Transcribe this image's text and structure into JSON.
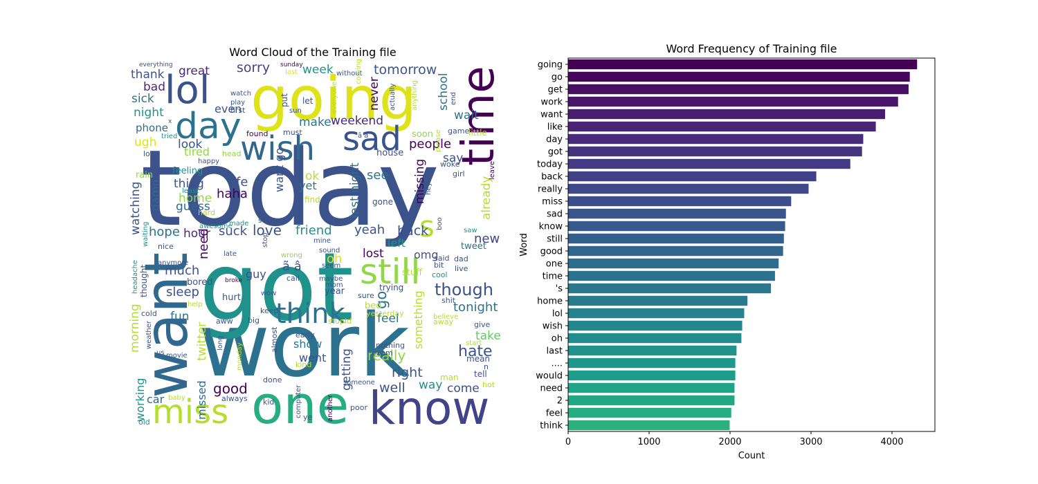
{
  "figure": {
    "left_title": "Word Cloud of the Training file",
    "right_title": "Word Frequency of Training file"
  },
  "chart_data": [
    {
      "type": "wordcloud",
      "title": "Word Cloud of the Training file",
      "words": [
        {
          "text": "today",
          "color": "#3b528b"
        },
        {
          "text": "work",
          "color": "#2c728e"
        },
        {
          "text": "got",
          "color": "#21918c"
        },
        {
          "text": "going",
          "color": "#dde318"
        },
        {
          "text": "want",
          "color": "#31688e"
        },
        {
          "text": "one",
          "color": "#27ad81"
        },
        {
          "text": "know",
          "color": "#414487"
        },
        {
          "text": "time",
          "color": "#440154"
        },
        {
          "text": "lol",
          "color": "#3b528b"
        },
        {
          "text": "day",
          "color": "#2c728e"
        },
        {
          "text": "wish",
          "color": "#31688e"
        },
        {
          "text": "sad",
          "color": "#3b528b"
        },
        {
          "text": "miss",
          "color": "#b5de2b"
        },
        {
          "text": "still",
          "color": "#8fd744"
        },
        {
          "text": "think",
          "color": "#2c728e"
        },
        {
          "text": "s",
          "color": "#b5de2b"
        },
        {
          "text": "tomorrow",
          "color": "#3b528b"
        },
        {
          "text": "sorry",
          "color": "#414487"
        },
        {
          "text": "great",
          "color": "#482878"
        },
        {
          "text": "thank",
          "color": "#3b528b"
        },
        {
          "text": "bad",
          "color": "#482878"
        },
        {
          "text": "sick",
          "color": "#2c728e"
        },
        {
          "text": "night",
          "color": "#21918c"
        },
        {
          "text": "phone",
          "color": "#31688e"
        },
        {
          "text": "ugh",
          "color": "#dde318"
        },
        {
          "text": "look",
          "color": "#3b528b"
        },
        {
          "text": "tired",
          "color": "#8fd744"
        },
        {
          "text": "week",
          "color": "#21918c"
        },
        {
          "text": "weekend",
          "color": "#482878"
        },
        {
          "text": "make",
          "color": "#2c728e"
        },
        {
          "text": "even",
          "color": "#3b528b"
        },
        {
          "text": "school",
          "color": "#2c728e"
        },
        {
          "text": "wait",
          "color": "#2c728e"
        },
        {
          "text": "never",
          "color": "#440154"
        },
        {
          "text": "people",
          "color": "#440154"
        },
        {
          "text": "say",
          "color": "#3b528b"
        },
        {
          "text": "see",
          "color": "#2c728e"
        },
        {
          "text": "last night",
          "color": "#31688e"
        },
        {
          "text": "missing",
          "color": "#440154"
        },
        {
          "text": "haha",
          "color": "#440154"
        },
        {
          "text": "life",
          "color": "#3b528b"
        },
        {
          "text": "thing",
          "color": "#3b528b"
        },
        {
          "text": "home",
          "color": "#8fd744"
        },
        {
          "text": "guess",
          "color": "#31688e"
        },
        {
          "text": "ok",
          "color": "#b5de2b"
        },
        {
          "text": "yet",
          "color": "#2c728e"
        },
        {
          "text": "already",
          "color": "#b5de2b"
        },
        {
          "text": "hope",
          "color": "#2c728e"
        },
        {
          "text": "suck",
          "color": "#3b528b"
        },
        {
          "text": "love",
          "color": "#3b528b"
        },
        {
          "text": "friend",
          "color": "#21918c"
        },
        {
          "text": "yeah",
          "color": "#3b528b"
        },
        {
          "text": "back",
          "color": "#3b528b"
        },
        {
          "text": "new",
          "color": "#414487"
        },
        {
          "text": "hour",
          "color": "#482878"
        },
        {
          "text": "watching",
          "color": "#3b528b"
        },
        {
          "text": "damn",
          "color": "#31688e"
        },
        {
          "text": "need",
          "color": "#440154"
        },
        {
          "text": "much",
          "color": "#3b528b"
        },
        {
          "text": "oh",
          "color": "#dde318"
        },
        {
          "text": "lost",
          "color": "#440154"
        },
        {
          "text": "left",
          "color": "#21918c"
        },
        {
          "text": "omg",
          "color": "#3b528b"
        },
        {
          "text": "tweet",
          "color": "#2c728e"
        },
        {
          "text": "though",
          "color": "#3b528b"
        },
        {
          "text": "tonight",
          "color": "#2c728e"
        },
        {
          "text": "sleep",
          "color": "#3b528b"
        },
        {
          "text": "guy",
          "color": "#3b528b"
        },
        {
          "text": "fun",
          "color": "#2c728e"
        },
        {
          "text": "morning",
          "color": "#b5de2b"
        },
        {
          "text": "twitter",
          "color": "#b5de2b"
        },
        {
          "text": "feel",
          "color": "#2c728e"
        },
        {
          "text": "really",
          "color": "#8fd744"
        },
        {
          "text": "something",
          "color": "#b5de2b"
        },
        {
          "text": "hate",
          "color": "#3b528b"
        },
        {
          "text": "take",
          "color": "#5ec962"
        },
        {
          "text": "show",
          "color": "#2c728e"
        },
        {
          "text": "went",
          "color": "#3b528b"
        },
        {
          "text": "getting",
          "color": "#3b528b"
        },
        {
          "text": "right",
          "color": "#3b528b"
        },
        {
          "text": "well",
          "color": "#3b528b"
        },
        {
          "text": "way",
          "color": "#21918c"
        },
        {
          "text": "come",
          "color": "#3b528b"
        },
        {
          "text": "good",
          "color": "#440154"
        },
        {
          "text": "working",
          "color": "#21918c"
        },
        {
          "text": "missed",
          "color": "#31688e"
        },
        {
          "text": "car",
          "color": "#31688e"
        },
        {
          "text": "go",
          "color": "#2c728e"
        },
        {
          "text": "want go",
          "color": "#3b528b"
        },
        {
          "text": "bored",
          "color": "#3b528b"
        },
        {
          "text": "feeling",
          "color": "#21918c"
        },
        {
          "text": "rain",
          "color": "#8fd744"
        },
        {
          "text": "everything",
          "color": "#3b528b"
        },
        {
          "text": "watch",
          "color": "#3b528b"
        },
        {
          "text": "play",
          "color": "#3b528b"
        },
        {
          "text": "first",
          "color": "#3b528b"
        },
        {
          "text": "sunday",
          "color": "#440154"
        },
        {
          "text": "last",
          "color": "#dde318"
        },
        {
          "text": "without",
          "color": "#3b528b"
        },
        {
          "text": "coming",
          "color": "#b5de2b"
        },
        {
          "text": "put",
          "color": "#3b528b"
        },
        {
          "text": "let",
          "color": "#3b528b"
        },
        {
          "text": "everyone",
          "color": "#b5de2b"
        },
        {
          "text": "actually",
          "color": "#3b528b"
        },
        {
          "text": "anything",
          "color": "#b5de2b"
        },
        {
          "text": "end",
          "color": "#3b528b"
        },
        {
          "text": "soon",
          "color": "#8fd744"
        },
        {
          "text": "game",
          "color": "#3b528b"
        },
        {
          "text": "little",
          "color": "#b5de2b"
        },
        {
          "text": "must",
          "color": "#3b528b"
        },
        {
          "text": "found",
          "color": "#440154"
        },
        {
          "text": "head",
          "color": "#8fd744"
        },
        {
          "text": "please",
          "color": "#b5de2b"
        },
        {
          "text": "woke",
          "color": "#3b528b"
        },
        {
          "text": "house",
          "color": "#3b528b"
        },
        {
          "text": "leave",
          "color": "#440154"
        },
        {
          "text": "girl",
          "color": "#3b528b"
        },
        {
          "text": "tried",
          "color": "#21918c"
        },
        {
          "text": "lot",
          "color": "#3b528b"
        },
        {
          "text": "happy",
          "color": "#3b528b"
        },
        {
          "text": "least",
          "color": "#21918c"
        },
        {
          "text": "hard",
          "color": "#b5de2b"
        },
        {
          "text": "better",
          "color": "#3b528b"
        },
        {
          "text": "awesome",
          "color": "#21918c"
        },
        {
          "text": "waiting",
          "color": "#21918c"
        },
        {
          "text": "made",
          "color": "#21918c"
        },
        {
          "text": "summer",
          "color": "#3b528b"
        },
        {
          "text": "stop",
          "color": "#3b528b"
        },
        {
          "text": "find",
          "color": "#b5de2b"
        },
        {
          "text": "gone",
          "color": "#3b528b"
        },
        {
          "text": "hey",
          "color": "#3b528b"
        },
        {
          "text": "boo",
          "color": "#3b528b"
        },
        {
          "text": "saw",
          "color": "#21918c"
        },
        {
          "text": "mine",
          "color": "#3b528b"
        },
        {
          "text": "nice",
          "color": "#3b528b"
        },
        {
          "text": "anymore",
          "color": "#3b528b"
        },
        {
          "text": "late",
          "color": "#3b528b"
        },
        {
          "text": "sound",
          "color": "#3b528b"
        },
        {
          "text": "wrong",
          "color": "#8fd744"
        },
        {
          "text": "call",
          "color": "#3b528b"
        },
        {
          "text": "seem",
          "color": "#3b528b"
        },
        {
          "text": "broke",
          "color": "#440154"
        },
        {
          "text": "maybe",
          "color": "#3b528b"
        },
        {
          "text": "mom",
          "color": "#3b528b"
        },
        {
          "text": "said",
          "color": "#3b528b"
        },
        {
          "text": "dad",
          "color": "#3b528b"
        },
        {
          "text": "bit",
          "color": "#3b528b"
        },
        {
          "text": "live",
          "color": "#3b528b"
        },
        {
          "text": "stuff",
          "color": "#b5de2b"
        },
        {
          "text": "cool",
          "color": "#21918c"
        },
        {
          "text": "trying",
          "color": "#3b528b"
        },
        {
          "text": "sure",
          "color": "#3b528b"
        },
        {
          "text": "year",
          "color": "#3b528b"
        },
        {
          "text": "wow",
          "color": "#3b528b"
        },
        {
          "text": "hurt",
          "color": "#3b528b"
        },
        {
          "text": "shit",
          "color": "#3b528b"
        },
        {
          "text": "bed",
          "color": "#b5de2b"
        },
        {
          "text": "keep",
          "color": "#3b528b"
        },
        {
          "text": "yesterday",
          "color": "#b5de2b"
        },
        {
          "text": "believe",
          "color": "#b5de2b"
        },
        {
          "text": "away",
          "color": "#b5de2b"
        },
        {
          "text": "give",
          "color": "#3b528b"
        },
        {
          "text": "stupid",
          "color": "#b5de2b"
        },
        {
          "text": "big",
          "color": "#3b528b"
        },
        {
          "text": "aww",
          "color": "#3b528b"
        },
        {
          "text": "help",
          "color": "#b5de2b"
        },
        {
          "text": "cold",
          "color": "#3b528b"
        },
        {
          "text": "headache",
          "color": "#21918c"
        },
        {
          "text": "thought",
          "color": "#3b528b"
        },
        {
          "text": "weather",
          "color": "#3b528b"
        },
        {
          "text": "us",
          "color": "#3b528b"
        },
        {
          "text": "movie",
          "color": "#3b528b"
        },
        {
          "text": "long",
          "color": "#3b528b"
        },
        {
          "text": "monday",
          "color": "#b5de2b"
        },
        {
          "text": "almost",
          "color": "#3b528b"
        },
        {
          "text": "nothing",
          "color": "#3b528b"
        },
        {
          "text": "exam",
          "color": "#3b528b"
        },
        {
          "text": "early",
          "color": "#3b528b"
        },
        {
          "text": "kind",
          "color": "#b5de2b"
        },
        {
          "text": "start",
          "color": "#b5de2b"
        },
        {
          "text": "mean",
          "color": "#3b528b"
        },
        {
          "text": "n",
          "color": "#3b528b"
        },
        {
          "text": "tell",
          "color": "#3b528b"
        },
        {
          "text": "man",
          "color": "#b5de2b"
        },
        {
          "text": "hot",
          "color": "#b5de2b"
        },
        {
          "text": "someone",
          "color": "#3b528b"
        },
        {
          "text": "done",
          "color": "#3b528b"
        },
        {
          "text": "always",
          "color": "#3b528b"
        },
        {
          "text": "baby",
          "color": "#b5de2b"
        },
        {
          "text": "kid",
          "color": "#3b528b"
        },
        {
          "text": "computer",
          "color": "#3b528b"
        },
        {
          "text": "another",
          "color": "#440154"
        },
        {
          "text": "poor",
          "color": "#3b528b"
        },
        {
          "text": "ye",
          "color": "#3b528b"
        },
        {
          "text": "old",
          "color": "#21918c"
        },
        {
          "text": "ã â",
          "color": "#3b528b"
        },
        {
          "text": "â â",
          "color": "#3b528b"
        },
        {
          "text": "sun",
          "color": "#3b528b"
        },
        {
          "text": "x",
          "color": "#3b528b"
        }
      ]
    },
    {
      "type": "bar",
      "orientation": "horizontal",
      "title": "Word Frequency of Training file",
      "xlabel": "Count",
      "ylabel": "Word",
      "xlim": [
        0,
        4530
      ],
      "xticks": [
        0,
        1000,
        2000,
        3000,
        4000
      ],
      "categories": [
        "going",
        "go",
        "get",
        "work",
        "want",
        "like",
        "day",
        "got",
        "today",
        "back",
        "really",
        "miss",
        "sad",
        "know",
        "still",
        "good",
        "one",
        "time",
        "'s",
        "home",
        "lol",
        "wish",
        "oh",
        "last",
        "....",
        "would",
        "need",
        "2",
        "feel",
        "think"
      ],
      "values": [
        4310,
        4220,
        4205,
        4075,
        3915,
        3800,
        3645,
        3630,
        3485,
        3065,
        2970,
        2755,
        2690,
        2680,
        2665,
        2655,
        2600,
        2555,
        2505,
        2215,
        2175,
        2150,
        2140,
        2080,
        2065,
        2065,
        2055,
        2055,
        2015,
        1995
      ],
      "colors": [
        "#440154",
        "#46085c",
        "#471063",
        "#481769",
        "#481d6f",
        "#482475",
        "#472d7b",
        "#46337e",
        "#443a83",
        "#424086",
        "#3f4889",
        "#3d4d8a",
        "#3a548c",
        "#375a8c",
        "#34608d",
        "#31668e",
        "#2f6c8e",
        "#2c718e",
        "#2a778e",
        "#287c8e",
        "#26828e",
        "#24878e",
        "#228d8d",
        "#21918c",
        "#1f978b",
        "#1f9d8a",
        "#20a386",
        "#22a785",
        "#26ad81",
        "#2cb17e"
      ]
    }
  ]
}
